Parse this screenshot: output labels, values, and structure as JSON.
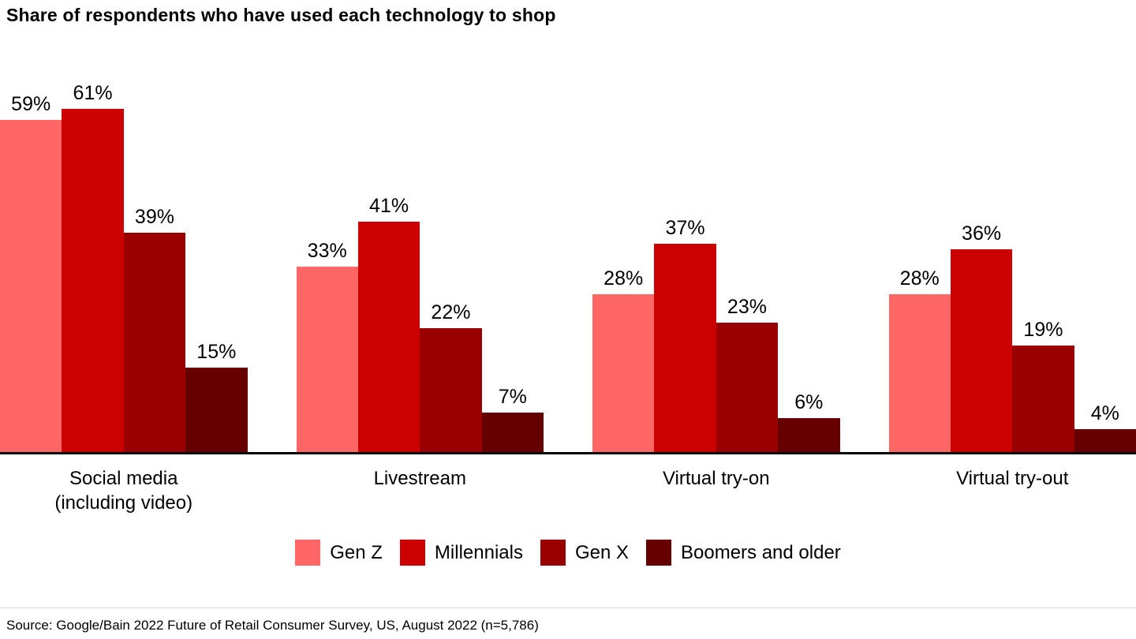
{
  "chart_data": {
    "type": "bar",
    "title": "Share of respondents who have used each technology to shop",
    "categories": [
      "Social media\n(including video)",
      "Livestream",
      "Virtual try-on",
      "Virtual try-out"
    ],
    "series": [
      {
        "name": "Gen Z",
        "color": "#FF6666",
        "values": [
          59,
          33,
          28,
          28
        ]
      },
      {
        "name": "Millennials",
        "color": "#CC0000",
        "values": [
          61,
          41,
          37,
          36
        ]
      },
      {
        "name": "Gen X",
        "color": "#990000",
        "values": [
          39,
          22,
          23,
          19
        ]
      },
      {
        "name": "Boomers and older",
        "color": "#660000",
        "values": [
          15,
          7,
          6,
          4
        ]
      }
    ],
    "value_suffix": "%",
    "ylabel": "",
    "xlabel": "",
    "ylim": [
      0,
      80
    ],
    "grid": false,
    "legend_position": "bottom",
    "axis_line_color": "#000000"
  },
  "source": {
    "text": "Source: Google/Bain 2022 Future of Retail Consumer Survey, US, August 2022 (n=5,786)"
  }
}
